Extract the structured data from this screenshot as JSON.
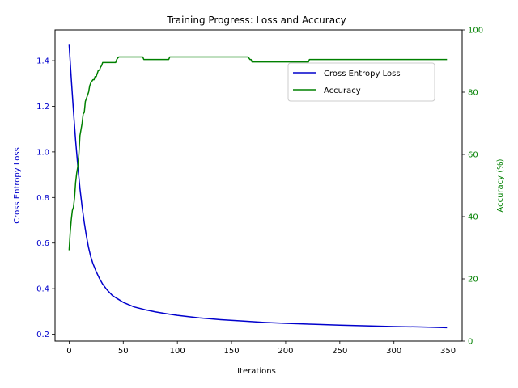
{
  "chart_data": {
    "type": "line",
    "title": "Training Progress: Loss and Accuracy",
    "xlabel": "Iterations",
    "ylabel_left": "Cross Entropy Loss",
    "ylabel_right": "Accuracy (%)",
    "xlim": [
      -13,
      363
    ],
    "ylim_left": [
      0.17,
      1.535
    ],
    "ylim_right": [
      0,
      100
    ],
    "xticks": [
      0,
      50,
      100,
      150,
      200,
      250,
      300,
      350
    ],
    "yticks_left": [
      0.2,
      0.4,
      0.6,
      0.8,
      1.0,
      1.2,
      1.4
    ],
    "yticks_left_labels": [
      "0.2",
      "0.4",
      "0.6",
      "0.8",
      "1.0",
      "1.2",
      "1.4"
    ],
    "yticks_right": [
      0,
      20,
      40,
      60,
      80,
      100
    ],
    "grid": false,
    "legend_position": "upper-right",
    "colors": {
      "loss": "#0000cc",
      "accuracy": "#008000",
      "axis": "#000000"
    },
    "series": [
      {
        "name": "Cross Entropy Loss",
        "axis": "left",
        "color": "#0000cc",
        "x": [
          0,
          2,
          4,
          6,
          8,
          10,
          12,
          14,
          16,
          18,
          20,
          22,
          25,
          28,
          31,
          35,
          40,
          45,
          50,
          60,
          70,
          80,
          90,
          100,
          120,
          140,
          160,
          180,
          200,
          225,
          250,
          275,
          300,
          325,
          349
        ],
        "y": [
          1.47,
          1.32,
          1.18,
          1.05,
          0.94,
          0.84,
          0.76,
          0.69,
          0.63,
          0.58,
          0.54,
          0.51,
          0.475,
          0.445,
          0.42,
          0.395,
          0.37,
          0.355,
          0.34,
          0.32,
          0.308,
          0.298,
          0.29,
          0.283,
          0.272,
          0.264,
          0.258,
          0.252,
          0.248,
          0.244,
          0.24,
          0.237,
          0.234,
          0.232,
          0.229
        ]
      },
      {
        "name": "Accuracy",
        "axis": "right",
        "color": "#008000",
        "x": [
          0,
          1,
          2,
          3,
          4,
          5,
          6,
          7,
          8,
          9,
          10,
          11,
          12,
          13,
          14,
          15,
          16,
          17,
          18,
          19,
          20,
          21,
          22,
          23,
          24,
          25,
          26,
          27,
          28,
          29,
          30,
          31,
          32,
          33,
          34,
          35,
          40,
          43,
          44,
          45,
          46,
          68,
          69,
          70,
          92,
          93,
          165,
          166,
          167,
          168,
          169,
          170,
          221,
          222,
          349
        ],
        "y": [
          29.2,
          35,
          39,
          42,
          43,
          46,
          51,
          54,
          56,
          60,
          66,
          68,
          70,
          73,
          73.5,
          77,
          78,
          79,
          80,
          82,
          83,
          83.5,
          84,
          84,
          85,
          85,
          86,
          87,
          87,
          88,
          88.5,
          89.5,
          89.5,
          89.5,
          89.5,
          89.5,
          89.5,
          89.5,
          90.5,
          91,
          91.3,
          91.3,
          90.5,
          90.5,
          90.5,
          91.3,
          91.3,
          91,
          90.5,
          90.5,
          89.7,
          89.7,
          89.7,
          90.5,
          90.5
        ]
      }
    ]
  }
}
